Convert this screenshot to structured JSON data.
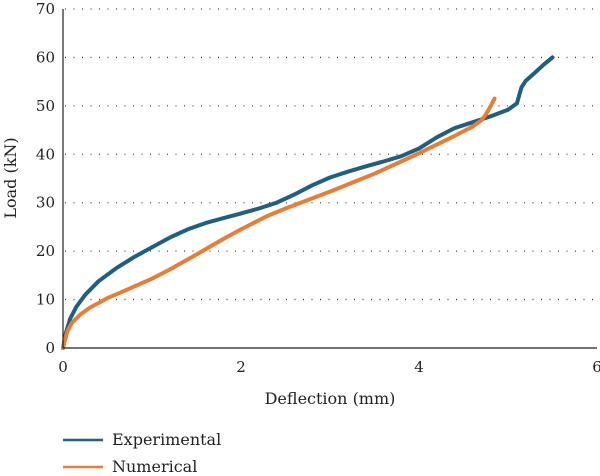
{
  "chart_data": {
    "type": "line",
    "xlabel": "Deflection (mm)",
    "ylabel": "Load (kN)",
    "xlim": [
      0,
      6
    ],
    "ylim": [
      0,
      70
    ],
    "xticks": [
      0,
      2,
      4,
      6
    ],
    "yticks": [
      0,
      10,
      20,
      30,
      40,
      50,
      60,
      70
    ],
    "grid": "horizontal dotted",
    "legend_position": "bottom-left",
    "series": [
      {
        "name": "Experimental",
        "color": "#1f5f7f",
        "x": [
          0,
          0.03,
          0.08,
          0.15,
          0.25,
          0.4,
          0.6,
          0.8,
          1.0,
          1.2,
          1.4,
          1.6,
          1.8,
          2.0,
          2.2,
          2.4,
          2.6,
          2.8,
          3.0,
          3.2,
          3.4,
          3.6,
          3.8,
          4.0,
          4.2,
          4.4,
          4.6,
          4.8,
          5.0,
          5.1,
          5.15,
          5.2,
          5.3,
          5.4,
          5.5
        ],
        "y": [
          0,
          3,
          6,
          8.5,
          11,
          13.8,
          16.5,
          18.8,
          20.8,
          22.8,
          24.5,
          25.8,
          26.8,
          27.8,
          28.8,
          30,
          31.7,
          33.6,
          35.2,
          36.4,
          37.5,
          38.5,
          39.6,
          41.2,
          43.5,
          45.4,
          46.6,
          47.8,
          49.2,
          50.5,
          53.8,
          55.2,
          56.8,
          58.5,
          60
        ]
      },
      {
        "name": "Numerical",
        "color": "#e87d36",
        "x": [
          0,
          0.02,
          0.05,
          0.1,
          0.2,
          0.3,
          0.5,
          0.7,
          1.0,
          1.2,
          1.5,
          1.8,
          2.0,
          2.3,
          2.5,
          2.8,
          3.0,
          3.3,
          3.5,
          3.8,
          4.0,
          4.2,
          4.4,
          4.6,
          4.7,
          4.75,
          4.8,
          4.85
        ],
        "y": [
          0,
          1.5,
          3.5,
          5.2,
          7,
          8.3,
          10.3,
          11.9,
          14.3,
          16.2,
          19.3,
          22.5,
          24.5,
          27.3,
          28.8,
          30.9,
          32.3,
          34.5,
          36,
          38.5,
          40.2,
          42,
          43.8,
          45.7,
          47,
          48.2,
          49.8,
          51.5
        ]
      }
    ]
  }
}
